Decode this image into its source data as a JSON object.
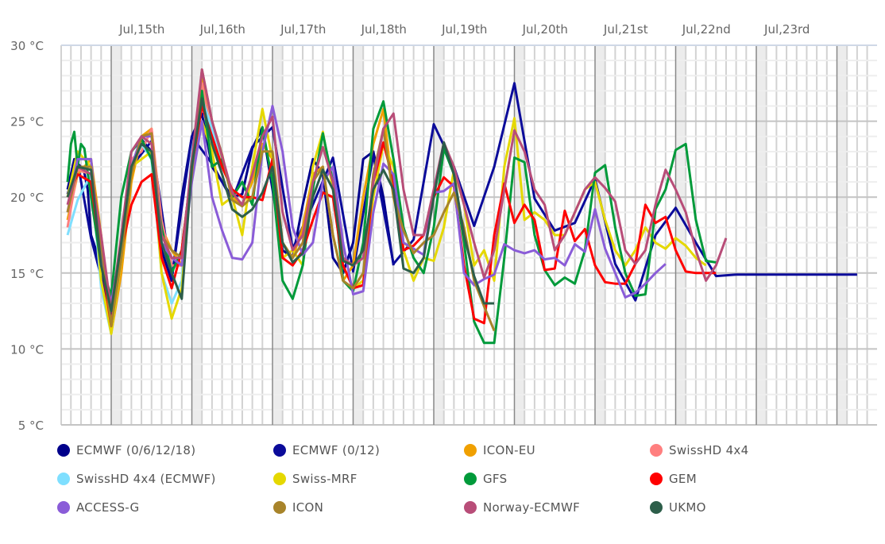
{
  "chart_data": {
    "type": "line",
    "title": "",
    "xlabel": "",
    "ylabel": "",
    "y_unit": "°C",
    "ylim": [
      5,
      30
    ],
    "y_ticks": [
      5,
      10,
      15,
      20,
      25,
      30
    ],
    "y_tick_labels": [
      "5 °C",
      "10 °C",
      "15 °C",
      "20 °C",
      "25 °C",
      "30 °C"
    ],
    "x_unit": "hours since Jul 14 00:00",
    "xlim": [
      9,
      252
    ],
    "x_day_labels": [
      {
        "label": "Jul,15th",
        "hour": 24
      },
      {
        "label": "Jul,16th",
        "hour": 48
      },
      {
        "label": "Jul,17th",
        "hour": 72
      },
      {
        "label": "Jul,18th",
        "hour": 96
      },
      {
        "label": "Jul,19th",
        "hour": 120
      },
      {
        "label": "Jul,20th",
        "hour": 144
      },
      {
        "label": "Jul,21st",
        "hour": 168
      },
      {
        "label": "Jul,22nd",
        "hour": 192
      },
      {
        "label": "Jul,23rd",
        "hour": 216
      }
    ],
    "grid": true,
    "legend_position": "bottom",
    "series": [
      {
        "name": "ECMWF (0/6/12/18)",
        "color": "#00008b",
        "x": [
          11,
          12,
          13,
          14,
          15,
          16,
          17,
          18,
          21,
          24,
          27,
          30,
          33,
          36,
          39,
          42,
          45,
          48,
          51,
          54,
          57,
          60,
          63,
          66,
          69,
          72,
          75,
          78,
          81,
          84,
          87,
          90,
          93,
          96,
          99,
          102,
          105,
          108
        ],
        "y": [
          20.5,
          21.5,
          22.5,
          22.2,
          22,
          21.6,
          20.5,
          17.5,
          15.5,
          12,
          17,
          22,
          23.8,
          23,
          16.5,
          14.5,
          20,
          24,
          25.5,
          22,
          21,
          20,
          20.2,
          23.2,
          24.6,
          20.5,
          16.5,
          16,
          19.5,
          22.5,
          21.5,
          16,
          15,
          17,
          22.5,
          23,
          20,
          15.5
        ]
      },
      {
        "name": "ECMWF (0/12)",
        "color": "#0b0b9a",
        "x": [
          11,
          14,
          18,
          24,
          30,
          36,
          42,
          48,
          54,
          60,
          66,
          72,
          78,
          84,
          90,
          96,
          102,
          108,
          114,
          120,
          126,
          132,
          138,
          144,
          150,
          156,
          162,
          168,
          174,
          180,
          186,
          192,
          198,
          204,
          210,
          216,
          222,
          228,
          234,
          240,
          246
        ],
        "y": [
          20.2,
          22.3,
          17.3,
          12.2,
          22,
          23.7,
          14.6,
          24,
          22.2,
          19.8,
          23.3,
          24.6,
          16.6,
          19.5,
          22.6,
          15.1,
          22.8,
          15.6,
          17.2,
          24.8,
          22,
          18.1,
          22,
          27.5,
          19.9,
          17.8,
          18.3,
          21.2,
          15.6,
          13.2,
          17.5,
          19.3,
          17,
          14.8,
          14.9,
          14.9,
          14.9,
          14.9,
          14.9,
          14.9,
          14.9
        ]
      },
      {
        "name": "ICON-EU",
        "color": "#f0a000",
        "x": [
          11,
          14,
          18,
          21,
          24,
          27,
          30,
          33,
          36,
          39,
          42,
          45,
          48,
          51,
          54,
          57,
          60,
          63,
          66,
          69,
          72,
          75,
          78,
          81,
          84,
          87,
          90,
          93,
          96,
          99,
          102,
          105,
          108,
          111,
          114
        ],
        "y": [
          18.5,
          21.5,
          22.5,
          17.5,
          11,
          15,
          21,
          24,
          24.5,
          18,
          16.5,
          15.5,
          22,
          28,
          25,
          22.5,
          20,
          19.5,
          21,
          23.5,
          22.5,
          17,
          16,
          18,
          21.5,
          22,
          17.5,
          14.5,
          15.5,
          20,
          23.5,
          25.8,
          20,
          17,
          16.5
        ]
      },
      {
        "name": "SwissHD 4x4",
        "color": "#ff7f7f",
        "x": [
          11,
          14,
          18,
          21,
          24,
          27,
          30,
          33,
          36,
          39,
          42,
          45,
          48,
          51,
          54,
          57,
          60
        ],
        "y": [
          18,
          21.8,
          21.5,
          16.5,
          11.5,
          17,
          22.5,
          23,
          24.5,
          18.5,
          15.5,
          15.5,
          22.5,
          27.5,
          24,
          22,
          20.5
        ]
      },
      {
        "name": "SwissHD 4x4 (ECMWF)",
        "color": "#7fdfff",
        "x": [
          11,
          14,
          18,
          21,
          24,
          27,
          30,
          33,
          36,
          39,
          42,
          45,
          48,
          51,
          54,
          57
        ],
        "y": [
          17.5,
          19.8,
          21.5,
          14,
          11,
          16,
          22,
          23.5,
          22.5,
          15,
          13,
          14.5,
          23,
          26.5,
          24.5,
          22
        ]
      },
      {
        "name": "Swiss-MRF",
        "color": "#e5d800",
        "x": [
          11,
          14,
          18,
          21,
          24,
          27,
          30,
          33,
          36,
          39,
          42,
          45,
          48,
          51,
          54,
          57,
          60,
          63,
          66,
          69,
          72,
          75,
          78,
          81,
          84,
          87,
          90,
          93,
          96,
          99,
          102,
          105,
          108,
          111,
          114,
          117,
          120,
          123,
          126,
          129,
          132,
          135,
          138,
          141,
          144,
          147,
          150,
          153,
          156,
          159,
          162,
          165,
          168,
          171,
          174,
          177,
          180,
          183,
          186,
          189,
          192,
          195,
          198,
          201
        ],
        "y": [
          20,
          23,
          22,
          14.5,
          11,
          16,
          22,
          22.5,
          23,
          15,
          12,
          14,
          22,
          25,
          23,
          19.5,
          20,
          17.5,
          22,
          25.8,
          22.5,
          16,
          16.5,
          15.5,
          22,
          24.3,
          20.5,
          15.5,
          14,
          14.5,
          20,
          23.5,
          22,
          16.5,
          14.5,
          16,
          15.8,
          18,
          21.8,
          19.5,
          15.5,
          16.5,
          14.5,
          22,
          25.2,
          18.5,
          19,
          18.5,
          17.5,
          17.5,
          19,
          20.5,
          21,
          18.5,
          16.5,
          15.5,
          16.5,
          18,
          17,
          16.6,
          17.3,
          16.8,
          16,
          15.5
        ]
      },
      {
        "name": "GFS",
        "color": "#009a3a",
        "x": [
          11,
          12,
          13,
          14,
          15,
          16,
          18,
          21,
          24,
          27,
          30,
          33,
          36,
          39,
          42,
          45,
          48,
          51,
          54,
          57,
          60,
          63,
          66,
          69,
          72,
          75,
          78,
          81,
          84,
          87,
          90,
          93,
          96,
          99,
          102,
          105,
          108,
          111,
          114,
          117,
          120,
          123,
          126,
          129,
          132,
          135,
          138,
          141,
          144,
          147,
          150,
          153,
          156,
          159,
          162,
          165,
          168,
          171,
          174,
          177,
          180,
          183,
          186,
          189,
          192,
          195,
          198,
          201,
          204
        ],
        "y": [
          21,
          23.5,
          24.3,
          22,
          23.5,
          23.2,
          20,
          15.5,
          13.5,
          20,
          23,
          23.8,
          22.5,
          18,
          15,
          16.5,
          22,
          27,
          22,
          22.5,
          20,
          21,
          19.5,
          24.6,
          21,
          14.5,
          13.3,
          15.5,
          20.5,
          24.2,
          21,
          14.5,
          13.8,
          17,
          24.5,
          26.3,
          22.5,
          18,
          16,
          15,
          18,
          23.2,
          21.5,
          17,
          11.8,
          10.4,
          10.4,
          16,
          22.6,
          22.3,
          17.5,
          15.2,
          14.2,
          14.7,
          14.3,
          16.5,
          21.6,
          22.1,
          18,
          15,
          13.5,
          13.6,
          19.2,
          20.5,
          23.1,
          23.5,
          18.5,
          15.8,
          15.7
        ]
      },
      {
        "name": "GEM",
        "color": "#ff0000",
        "x": [
          11,
          14,
          18,
          21,
          24,
          27,
          30,
          33,
          36,
          39,
          42,
          45,
          48,
          51,
          54,
          57,
          60,
          63,
          66,
          69,
          72,
          75,
          78,
          81,
          84,
          87,
          90,
          93,
          96,
          99,
          102,
          105,
          108,
          111,
          114,
          117,
          120,
          123,
          126,
          129,
          132,
          135,
          138,
          141,
          144,
          147,
          150,
          153,
          156,
          159,
          162,
          165,
          168,
          171,
          174,
          177,
          180,
          183,
          186,
          189,
          192,
          195,
          198,
          201,
          204
        ],
        "y": [
          20,
          21.5,
          21,
          16,
          11.5,
          16.5,
          19.5,
          21,
          21.5,
          16,
          14,
          16.5,
          22,
          26,
          24,
          22,
          20.5,
          20,
          20,
          19.8,
          22.5,
          16,
          15.5,
          16.5,
          18.5,
          20.3,
          20,
          15.5,
          14,
          14.2,
          21,
          23.6,
          21,
          16.5,
          16.8,
          17.5,
          20,
          21.3,
          20.7,
          15.5,
          12,
          11.7,
          17.5,
          20.9,
          18.3,
          19.5,
          18.5,
          15.2,
          15.3,
          19.1,
          17.1,
          17.9,
          15.5,
          14.4,
          14.3,
          14.3,
          15.6,
          19.5,
          18.3,
          18.7,
          16.5,
          15.1,
          15,
          15,
          15
        ]
      },
      {
        "name": "ACCESS-G",
        "color": "#8a5cd8",
        "x": [
          11,
          14,
          18,
          21,
          24,
          27,
          30,
          33,
          36,
          39,
          42,
          45,
          48,
          51,
          54,
          57,
          60,
          63,
          66,
          69,
          72,
          75,
          78,
          81,
          84,
          87,
          90,
          93,
          96,
          99,
          102,
          105,
          108,
          111,
          114,
          117,
          120,
          123,
          126,
          129,
          132,
          135,
          138,
          141,
          144,
          147,
          150,
          153,
          156,
          159,
          162,
          165,
          168,
          171,
          174,
          177,
          180,
          183,
          186,
          189
        ],
        "y": [
          19,
          22.5,
          22.5,
          16,
          13,
          17,
          22,
          24,
          24,
          17,
          16,
          15.5,
          21,
          25,
          20,
          17.8,
          16,
          15.9,
          17,
          23,
          26,
          23,
          18,
          16.2,
          17,
          21,
          22,
          17,
          13.6,
          13.8,
          19,
          22.2,
          21.5,
          17,
          16.6,
          16.2,
          20.3,
          20.4,
          20.9,
          15,
          14.2,
          14.6,
          14.9,
          16.9,
          16.5,
          16.3,
          16.5,
          15.9,
          16,
          15.5,
          16.9,
          16.4,
          19.2,
          16.6,
          15,
          13.4,
          13.7,
          14.3,
          15,
          15.6
        ]
      },
      {
        "name": "ICON",
        "color": "#a8842a",
        "x": [
          11,
          14,
          18,
          21,
          24,
          27,
          30,
          33,
          36,
          39,
          42,
          45,
          48,
          51,
          54,
          57,
          60,
          63,
          66,
          69,
          72,
          75,
          78,
          81,
          84,
          87,
          90,
          93,
          96,
          99,
          102,
          105,
          108,
          111,
          114,
          117,
          120,
          123,
          126,
          129,
          132,
          135,
          138
        ],
        "y": [
          19,
          22,
          22,
          17,
          11.5,
          16,
          21.5,
          24,
          24.2,
          17.5,
          16.5,
          16,
          21.5,
          28.4,
          25,
          22.8,
          19.8,
          19.4,
          20,
          23,
          23,
          17,
          16,
          17,
          21,
          22,
          17.5,
          14.5,
          14,
          15,
          21.5,
          24.5,
          20,
          17.8,
          16.3,
          17,
          17.5,
          19,
          20.3,
          18,
          14.5,
          12.8,
          11.2
        ]
      },
      {
        "name": "Norway-ECMWF",
        "color": "#b84d78",
        "x": [
          11,
          14,
          18,
          21,
          24,
          27,
          30,
          33,
          36,
          39,
          42,
          45,
          48,
          51,
          54,
          57,
          60,
          63,
          66,
          69,
          72,
          75,
          78,
          81,
          84,
          87,
          90,
          93,
          96,
          99,
          102,
          105,
          108,
          111,
          114,
          117,
          120,
          123,
          126,
          129,
          132,
          135,
          138,
          141,
          144,
          147,
          150,
          153,
          156,
          159,
          162,
          165,
          168,
          171,
          174,
          177,
          180,
          183,
          186,
          189,
          192,
          195,
          198,
          201,
          204,
          207
        ],
        "y": [
          19.5,
          22,
          21.5,
          17.5,
          12.5,
          17.5,
          23,
          24,
          23.5,
          17.5,
          16,
          16,
          22.5,
          28.4,
          25,
          22.7,
          20.3,
          19.5,
          21.5,
          24,
          25.3,
          19,
          16.5,
          17.5,
          21,
          23.3,
          21,
          16,
          15.5,
          16,
          21,
          24.5,
          25.5,
          20.5,
          17.5,
          17.5,
          20.5,
          23.6,
          22,
          19.5,
          17,
          14.7,
          16.5,
          20.5,
          24.4,
          23,
          20.5,
          19.5,
          16.5,
          17.5,
          19,
          20.5,
          21.3,
          20.6,
          19.7,
          16.5,
          15.6,
          16.5,
          19.5,
          21.8,
          20.5,
          19,
          16.5,
          14.5,
          15.5,
          17.3
        ]
      },
      {
        "name": "UKMO",
        "color": "#2d5e4a",
        "x": [
          11,
          14,
          18,
          21,
          24,
          27,
          30,
          33,
          36,
          39,
          42,
          45,
          48,
          51,
          54,
          57,
          60,
          63,
          66,
          69,
          72,
          75,
          78,
          81,
          84,
          87,
          90,
          93,
          96,
          99,
          102,
          105,
          108,
          111,
          114,
          117,
          120,
          123,
          126,
          129,
          132,
          135,
          138
        ],
        "y": [
          20,
          22,
          21.8,
          15.5,
          12.5,
          17,
          22,
          23.5,
          23,
          17,
          15,
          13.3,
          22,
          26.5,
          23.5,
          21.5,
          19.2,
          18.7,
          19.2,
          20.3,
          22,
          17,
          15.7,
          16.3,
          20,
          21.8,
          20.5,
          15.8,
          15.5,
          16.5,
          20.5,
          21.8,
          20.5,
          15.3,
          15,
          16,
          20,
          23.6,
          21.5,
          17.5,
          14.8,
          13,
          13
        ]
      }
    ]
  }
}
